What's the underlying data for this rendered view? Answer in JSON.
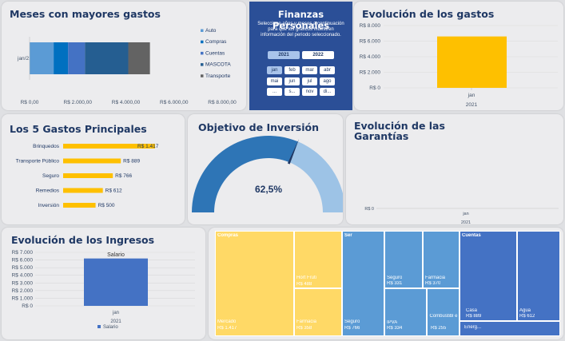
{
  "colors": {
    "navy": "#2b4f97",
    "gold": "#f9c00e",
    "blue": "#4472c4",
    "gray_bg": "#ececee"
  },
  "top_expenses": {
    "title": "Meses con mayores gastos",
    "category": "jan/21",
    "x_ticks": [
      "R$ 0,00",
      "R$ 2.000,00",
      "R$ 4.000,00",
      "R$ 6.000,00",
      "R$ 8.000,00"
    ],
    "legend": [
      "Auto",
      "Compras",
      "Cuentas",
      "MASCOTA",
      "Transporte"
    ]
  },
  "chart_data": [
    {
      "type": "bar",
      "orientation": "horizontal",
      "stacked": true,
      "title": "Meses con mayores gastos",
      "categories": [
        "jan/21"
      ],
      "series": [
        {
          "name": "Auto",
          "values": [
            1000
          ]
        },
        {
          "name": "Compras",
          "values": [
            600
          ]
        },
        {
          "name": "Cuentas",
          "values": [
            700
          ]
        },
        {
          "name": "MASCOTA",
          "values": [
            1800
          ]
        },
        {
          "name": "Transporte",
          "values": [
            900
          ]
        }
      ],
      "xlim": [
        0,
        8000
      ],
      "legend": "right"
    },
    {
      "type": "bar",
      "title": "Evolución de los gastos",
      "categories": [
        "jan"
      ],
      "x_group": "2021",
      "values": [
        6600
      ],
      "ylim": [
        0,
        8000
      ],
      "y_ticks": [
        "R$ 0",
        "R$ 2.000",
        "R$ 4.000",
        "R$ 6.000",
        "R$ 8.000"
      ]
    },
    {
      "type": "bar",
      "orientation": "horizontal",
      "title": "Los 5 Gastos Principales",
      "categories": [
        "Brinquedos",
        "Transporte Público",
        "Seguro",
        "Remedios",
        "Inversión"
      ],
      "values": [
        1417,
        889,
        766,
        612,
        500
      ],
      "labels": [
        "R$ 1.417",
        "R$ 889",
        "R$ 766",
        "R$ 612",
        "R$ 500"
      ]
    },
    {
      "type": "gauge",
      "title": "Objetivo de Inversión",
      "value": 62.5,
      "label": "62,5%"
    },
    {
      "type": "bar",
      "title": "Evolución de las Garantías",
      "categories": [
        "jan"
      ],
      "x_group": "2021",
      "values": [
        0
      ],
      "y_ticks": [
        "R$ 0"
      ]
    },
    {
      "type": "bar",
      "title": "Evolución de los Ingresos",
      "categories": [
        "jan"
      ],
      "x_group": "2021",
      "series": [
        {
          "name": "Salario",
          "values": [
            6200
          ]
        }
      ],
      "ylim": [
        0,
        7000
      ],
      "y_ticks": [
        "R$ 0",
        "R$ 1.000",
        "R$ 2.000",
        "R$ 3.000",
        "R$ 4.000",
        "R$ 5.000",
        "R$ 6.000",
        "R$ 7.000"
      ]
    }
  ],
  "finance": {
    "title": "Finanzas Personales",
    "description": "Seleccione años y meses a continuación para que los gráficos muestren información del periodo seleccionado.",
    "years": [
      "2021",
      "2022"
    ],
    "months": [
      "jan",
      "feb",
      "mar",
      "abr",
      "mai",
      "jun",
      "jul",
      "ago",
      "...",
      "s...",
      "nov",
      "di..."
    ]
  },
  "evolution": {
    "title": "Evolución de los gastos",
    "y_ticks": [
      "R$ 8.000",
      "R$ 6.000",
      "R$ 4.000",
      "R$ 2.000",
      "R$ 0"
    ],
    "x_label": "jan",
    "x_group": "2021"
  },
  "top5": {
    "title": "Los 5 Gastos Principales",
    "items": [
      {
        "label": "Brinquedos",
        "value": "R$ 1.417"
      },
      {
        "label": "Transporte Público",
        "value": "R$ 889"
      },
      {
        "label": "Seguro",
        "value": "R$ 766"
      },
      {
        "label": "Remedios",
        "value": "R$ 612"
      },
      {
        "label": "Inversión",
        "value": "R$ 500"
      }
    ]
  },
  "gauge": {
    "title": "Objetivo de Inversión",
    "value_label": "62,5%"
  },
  "guarantees": {
    "title_line1": "Evolución de las",
    "title_line2": "Garantías",
    "y_tick": "R$ 0",
    "x_label": "jan",
    "x_group": "2021"
  },
  "income": {
    "title": "Evolución de los Ingresos",
    "series_label": "Salario",
    "y_ticks": [
      "R$ 7.000",
      "R$ 6.000",
      "R$ 5.000",
      "R$ 4.000",
      "R$ 3.000",
      "R$ 2.000",
      "R$ 1.000",
      "R$ 0"
    ],
    "x_label": "jan",
    "x_group": "2021",
    "legend": "Salario"
  },
  "treemap": {
    "compras": {
      "title": "Compras",
      "mercado": "Mercado",
      "mercado_v": "R$ 1.417",
      "hort": "Hort Fruti",
      "hort_v": "R$ 488",
      "farm": "Farmacia",
      "farm_v": "R$ 358"
    },
    "ser": {
      "title": "Ser",
      "seguro1": "Seguro",
      "seguro1_v": "R$ 766",
      "seguro2": "Seguro",
      "seguro2_v": "R$ 331",
      "ipva": "IPVA",
      "ipva_v": "R$ 334",
      "farm": "Farmacia",
      "farm_v": "R$ 370",
      "comb": "Combustibl e",
      "comb_v": "R$ 255"
    },
    "cuentas": {
      "title": "Cuentas",
      "casa": "Casa",
      "casa_v": "R$ 889",
      "agua": "Agua",
      "agua_v": "R$ 612",
      "energ": "Energ..."
    }
  }
}
